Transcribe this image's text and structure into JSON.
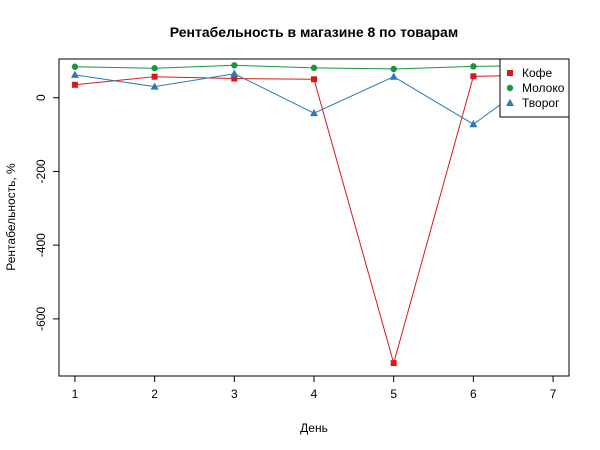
{
  "chart_data": {
    "type": "line",
    "title": "Рентабельность в магазине 8 по товарам",
    "xlabel": "День",
    "ylabel": "Рентабельность, %",
    "xlim": [
      0.8,
      7.2
    ],
    "ylim": [
      -755,
      105
    ],
    "xticks": [
      1,
      2,
      3,
      4,
      5,
      6,
      7
    ],
    "yticks": [
      -600,
      -400,
      -200,
      0
    ],
    "legend_position": "top-right",
    "grid": false,
    "series": [
      {
        "name": "Кофе",
        "color": "#d7191c",
        "marker": "square",
        "x": [
          1,
          2,
          3,
          4,
          5,
          6,
          7
        ],
        "y": [
          35,
          57,
          52,
          50,
          -720,
          58,
          62
        ]
      },
      {
        "name": "Молоко",
        "color": "#1a9641",
        "marker": "circle",
        "x": [
          1,
          2,
          3,
          4,
          5,
          6,
          7
        ],
        "y": [
          84,
          80,
          88,
          81,
          78,
          85,
          87
        ]
      },
      {
        "name": "Творог",
        "color": "#2c7bb6",
        "marker": "triangle",
        "x": [
          1,
          2,
          3,
          4,
          5,
          6,
          7
        ],
        "y": [
          62,
          30,
          65,
          -42,
          57,
          -72,
          85
        ]
      }
    ]
  }
}
